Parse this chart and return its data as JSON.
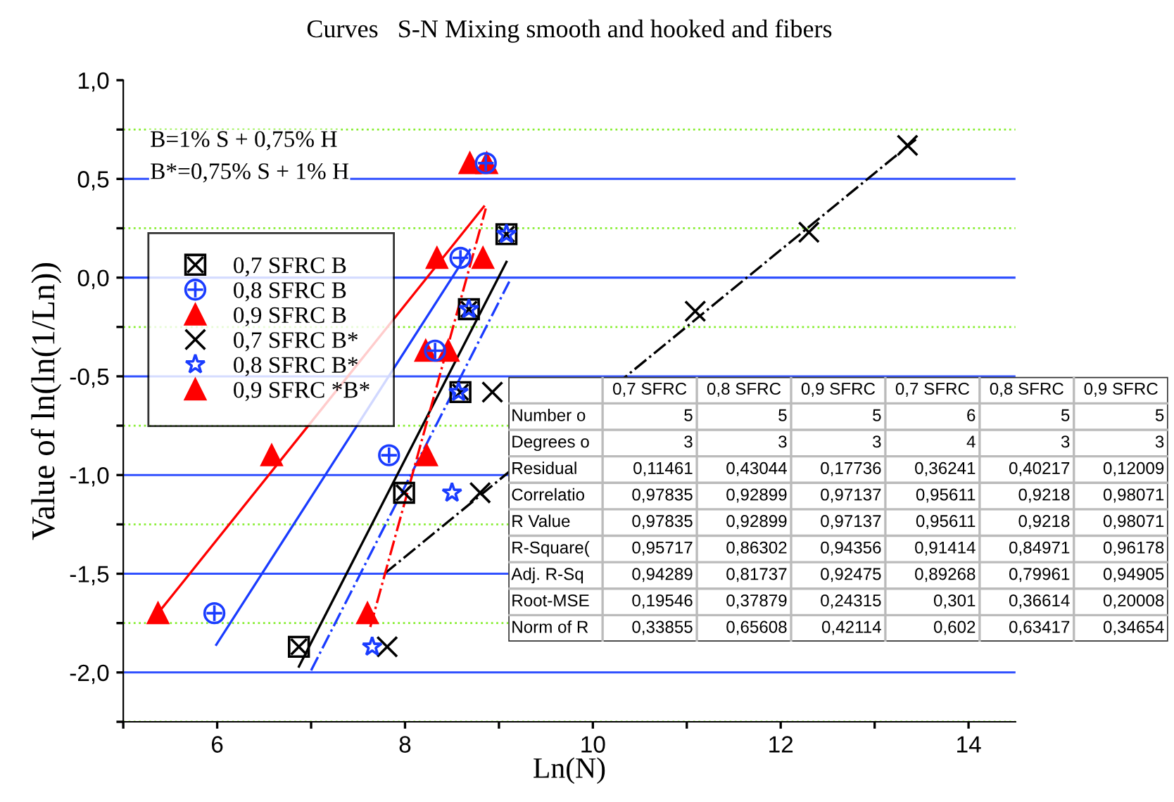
{
  "chart_data": [
    {
      "type": "scatter",
      "title": "Curves   S-N Mixing smooth and hooked and fibers",
      "xlabel": "Ln(N)",
      "ylabel": "Value of ln(ln(1/Ln))",
      "xlim": [
        5,
        14.5
      ],
      "ylim": [
        -2.25,
        1.0
      ],
      "xticks": [
        {
          "value": 5,
          "label": null
        },
        6,
        {
          "value": 7,
          "label": null
        },
        8,
        {
          "value": 9,
          "label": null
        },
        10,
        {
          "value": 11,
          "label": null
        },
        12,
        {
          "value": 13,
          "label": null
        },
        14
      ],
      "yticks": [
        {
          "value": -2.25,
          "label": null
        },
        {
          "value": -2.0,
          "label": "-2,0"
        },
        {
          "value": -1.75,
          "label": null
        },
        {
          "value": -1.5,
          "label": "-1,5"
        },
        {
          "value": -1.25,
          "label": null
        },
        {
          "value": -1.0,
          "label": "-1,0"
        },
        {
          "value": -0.75,
          "label": null
        },
        {
          "value": -0.5,
          "label": "-0,5"
        },
        {
          "value": -0.25,
          "label": null
        },
        {
          "value": 0.0,
          "label": "0,0"
        },
        {
          "value": 0.25,
          "label": null
        },
        {
          "value": 0.5,
          "label": "0,5"
        },
        {
          "value": 0.75,
          "label": null
        },
        {
          "value": 1.0,
          "label": "1,0"
        }
      ],
      "grid": "y",
      "legend": "top left",
      "annotations": [
        "B=1% S + 0,75% H",
        "B*=0,75% S + 1% H"
      ],
      "series": [
        {
          "name": "0,7 SFRC B",
          "color": "#000000",
          "marker": "square",
          "x": [
            6.87,
            7.99,
            8.59,
            8.68,
            9.08
          ],
          "values": [
            -1.87,
            -1.09,
            -0.58,
            -0.16,
            0.22
          ]
        },
        {
          "name": "0,8 SFRC B",
          "color": "#1a3cff",
          "marker": "circle",
          "x": [
            5.97,
            7.83,
            8.32,
            8.59,
            8.86
          ],
          "values": [
            -1.7,
            -0.9,
            -0.37,
            0.1,
            0.58
          ]
        },
        {
          "name": "0,9 SFRC B",
          "color": "#ff0000",
          "marker": "triangle",
          "x": [
            5.37,
            6.58,
            8.22,
            8.34,
            8.69
          ],
          "values": [
            -1.7,
            -0.9,
            -0.37,
            0.1,
            0.58
          ]
        },
        {
          "name": "0,7 SFRC B*",
          "color": "#000000",
          "marker": "cross",
          "x": [
            7.81,
            8.8,
            8.93,
            11.09,
            12.3,
            13.35
          ],
          "values": [
            -1.87,
            -1.09,
            -0.58,
            -0.17,
            0.23,
            0.67
          ]
        },
        {
          "name": "0,8 SFRC B*",
          "color": "#1a3cff",
          "marker": "star",
          "x": [
            7.65,
            8.5,
            8.57,
            8.68,
            9.08
          ],
          "values": [
            -1.87,
            -1.09,
            -0.58,
            -0.16,
            0.22
          ]
        },
        {
          "name": "0,9 SFRC *B*",
          "color": "#ff0000",
          "marker": "triangle",
          "x": [
            7.6,
            8.23,
            8.46,
            8.83,
            8.87
          ],
          "values": [
            -1.7,
            -0.9,
            -0.37,
            0.1,
            0.58
          ]
        },
        {
          "type": "line",
          "color": "#000000",
          "line_style": "solid",
          "x": [
            6.87,
            9.08
          ],
          "values": [
            -1.97,
            0.08
          ]
        },
        {
          "type": "line",
          "color": "#1a3cff",
          "line_style": "solid",
          "x": [
            5.99,
            8.69
          ],
          "values": [
            -1.86,
            0.14
          ]
        },
        {
          "type": "line",
          "color": "#ff0000",
          "line_style": "solid",
          "x": [
            5.37,
            8.84
          ],
          "values": [
            -1.7,
            0.36
          ]
        },
        {
          "type": "line",
          "color": "#000000",
          "line_style": "dashdot",
          "x": [
            7.78,
            13.44
          ],
          "values": [
            -1.5,
            0.7
          ]
        },
        {
          "type": "line",
          "color": "#1a3cff",
          "line_style": "dashdot",
          "x": [
            7.0,
            9.11
          ],
          "values": [
            -1.99,
            -0.02
          ]
        },
        {
          "type": "line",
          "color": "#ff0000",
          "line_style": "dashdot",
          "x": [
            7.63,
            8.86
          ],
          "values": [
            -1.77,
            0.35
          ]
        }
      ]
    },
    {
      "type": "other",
      "categories": [
        null,
        "0,7 SFRC",
        "0,8 SFRC",
        "0,9 SFRC",
        "0,7 SFRC",
        "0,8 SFRC",
        "0,9 SFRC"
      ],
      "y_categories": [
        "Number o",
        "Degrees o",
        "Residual",
        "Correlatio",
        "R Value",
        "R-Square(",
        "Adj. R-Sq",
        "Root-MSE",
        "Norm of R"
      ],
      "cell_labels": [
        [
          "5",
          "5",
          "5",
          "6",
          "5",
          "5"
        ],
        [
          "3",
          "3",
          "3",
          "4",
          "3",
          "3"
        ],
        [
          "0,11461",
          "0,43044",
          "0,17736",
          "0,36241",
          "0,40217",
          "0,12009"
        ],
        [
          "0,97835",
          "0,92899",
          "0,97137",
          "0,95611",
          "0,9218",
          "0,98071"
        ],
        [
          "0,97835",
          "0,92899",
          "0,97137",
          "0,95611",
          "0,9218",
          "0,98071"
        ],
        [
          "0,95717",
          "0,86302",
          "0,94356",
          "0,91414",
          "0,84971",
          "0,96178"
        ],
        [
          "0,94289",
          "0,81737",
          "0,92475",
          "0,89268",
          "0,79961",
          "0,94905"
        ],
        [
          "0,19546",
          "0,37879",
          "0,24315",
          "0,301",
          "0,36614",
          "0,20008"
        ],
        [
          "0,33855",
          "0,65608",
          "0,42114",
          "0,602",
          "0,63417",
          "0,34654"
        ]
      ]
    }
  ]
}
